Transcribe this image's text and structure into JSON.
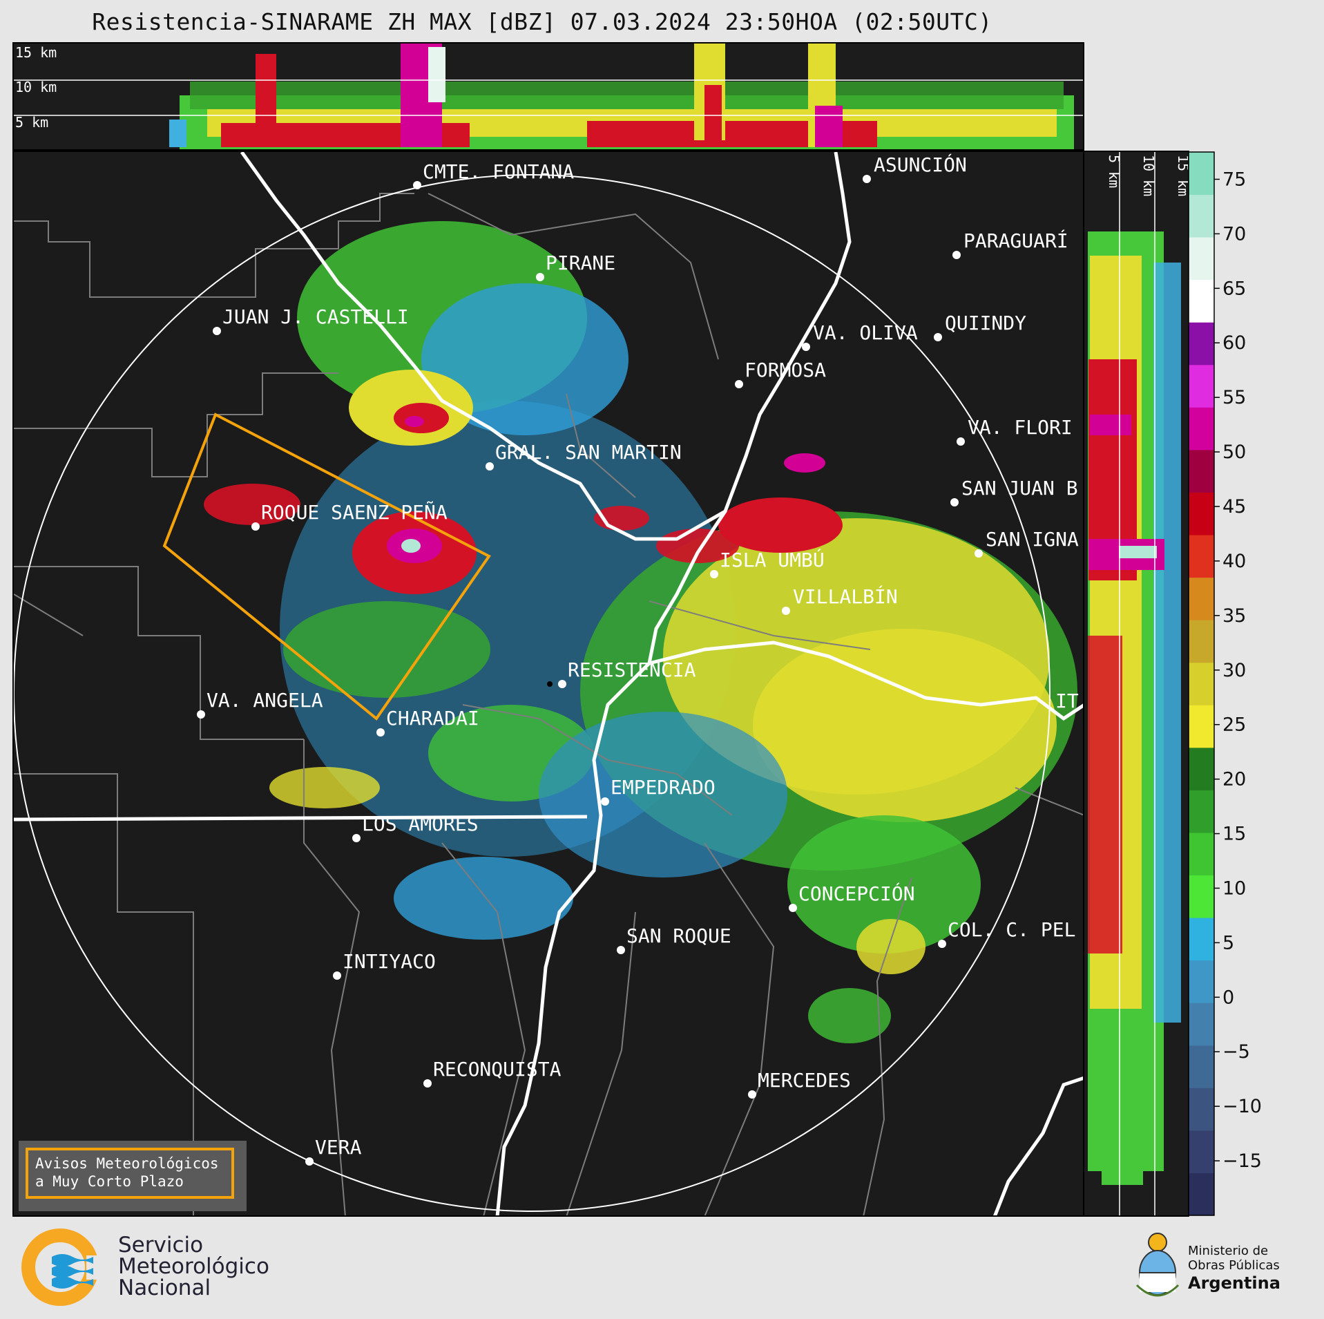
{
  "title": "Resistencia-SINARAME ZH MAX [dBZ] 07.03.2024 23:50HOA (02:50UTC)",
  "top_panel": {
    "height_labels": [
      "15 km",
      "10 km",
      "5 km"
    ]
  },
  "side_panel": {
    "height_labels": [
      "5 km",
      "10 km",
      "15 km"
    ]
  },
  "colorbar": {
    "unit": "dBZ",
    "ticks": [
      "75",
      "70",
      "65",
      "60",
      "55",
      "50",
      "45",
      "40",
      "35",
      "30",
      "25",
      "20",
      "15",
      "10",
      "5",
      "0",
      "−5",
      "−10",
      "−15"
    ],
    "colors": [
      "#2b2f5c",
      "#36406e",
      "#3c5580",
      "#3f6a95",
      "#4380ad",
      "#3f97c8",
      "#2fb2e0",
      "#4de636",
      "#3fc432",
      "#2f9e2a",
      "#237c20",
      "#f0e92e",
      "#d6cf2c",
      "#c7a82a",
      "#d68a1e",
      "#e0301e",
      "#c80016",
      "#9e0040",
      "#d2009c",
      "#e02ce0",
      "#8a10a8",
      "#ffffff",
      "#e6f5ee",
      "#b4e8d6",
      "#86dcbe"
    ]
  },
  "cities": [
    {
      "name": "CMTE. FONTANA"
    },
    {
      "name": "ASUNCIÓN"
    },
    {
      "name": "PARAGUARÍ"
    },
    {
      "name": "PIRANE"
    },
    {
      "name": "JUAN J. CASTELLI"
    },
    {
      "name": "VA. OLIVA"
    },
    {
      "name": "QUIINDY"
    },
    {
      "name": "FORMOSA"
    },
    {
      "name": "VA. FLORI"
    },
    {
      "name": "GRAL. SAN MARTIN"
    },
    {
      "name": "SAN JUAN B"
    },
    {
      "name": "ROQUE SAENZ PEÑA"
    },
    {
      "name": "SAN IGNA"
    },
    {
      "name": "ISLA UMBÚ"
    },
    {
      "name": "VILLALBÍN"
    },
    {
      "name": "RESISTENCIA"
    },
    {
      "name": "IT"
    },
    {
      "name": "VA. ANGELA"
    },
    {
      "name": "CHARADAI"
    },
    {
      "name": "EMPEDRADO"
    },
    {
      "name": "LOS AMORES"
    },
    {
      "name": "CONCEPCIÓN"
    },
    {
      "name": "SAN ROQUE"
    },
    {
      "name": "COL. C. PEL"
    },
    {
      "name": "INTIYACO"
    },
    {
      "name": "RECONQUISTA"
    },
    {
      "name": "MERCEDES"
    },
    {
      "name": "VERA"
    }
  ],
  "warning_legend": {
    "line1": "Avisos Meteorológicos",
    "line2": "a Muy Corto Plazo"
  },
  "smn_logo": {
    "line1": "Servicio",
    "line2": "Meteorológico",
    "line3": "Nacional"
  },
  "ministry_logo": {
    "line1": "Ministerio de",
    "line2": "Obras Públicas",
    "line3": "Argentina"
  }
}
